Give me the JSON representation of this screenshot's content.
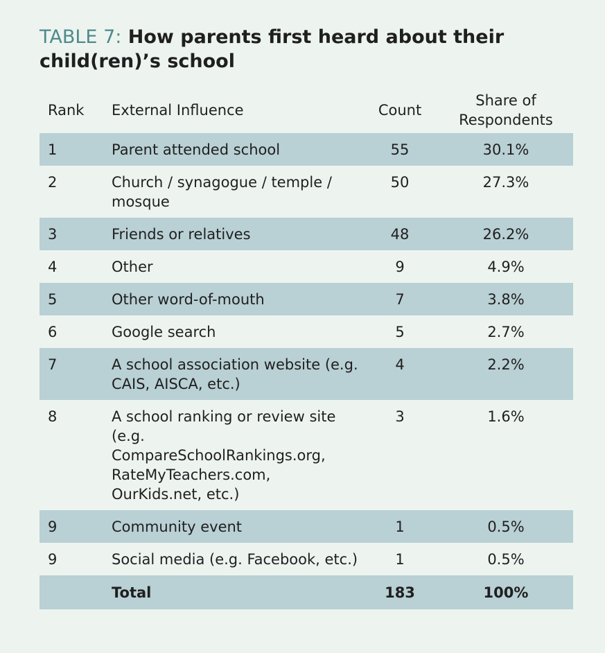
{
  "title": {
    "label": "TABLE 7:",
    "text": "How parents first heard about their child(ren)’s school"
  },
  "table": {
    "headers": {
      "rank": "Rank",
      "influence": "External Influence",
      "count": "Count",
      "share": "Share of Respondents"
    },
    "rows": [
      {
        "rank": "1",
        "influence": "Parent attended school",
        "count": "55",
        "share": "30.1%"
      },
      {
        "rank": "2",
        "influence": "Church / synagogue / temple / mosque",
        "count": "50",
        "share": "27.3%"
      },
      {
        "rank": "3",
        "influence": "Friends or relatives",
        "count": "48",
        "share": "26.2%"
      },
      {
        "rank": "4",
        "influence": "Other",
        "count": "9",
        "share": "4.9%"
      },
      {
        "rank": "5",
        "influence": "Other word-of-mouth",
        "count": "7",
        "share": "3.8%"
      },
      {
        "rank": "6",
        "influence": "Google search",
        "count": "5",
        "share": "2.7%"
      },
      {
        "rank": "7",
        "influence": "A school association website (e.g. CAIS, AISCA, etc.)",
        "count": "4",
        "share": "2.2%"
      },
      {
        "rank": "8",
        "influence": "A school ranking or review site (e.g. CompareSchoolRankings.org, RateMyTeachers.com, OurKids.net, etc.)",
        "count": "3",
        "share": "1.6%"
      },
      {
        "rank": "9",
        "influence": "Community event",
        "count": "1",
        "share": "0.5%"
      },
      {
        "rank": "9",
        "influence": "Social media (e.g. Facebook, etc.)",
        "count": "1",
        "share": "0.5%"
      }
    ],
    "total": {
      "label": "Total",
      "count": "183",
      "share": "100%"
    }
  },
  "colors": {
    "background": "#edf4f0",
    "row_shade": "#b9d0d4",
    "title_label": "#4f8a8b"
  }
}
